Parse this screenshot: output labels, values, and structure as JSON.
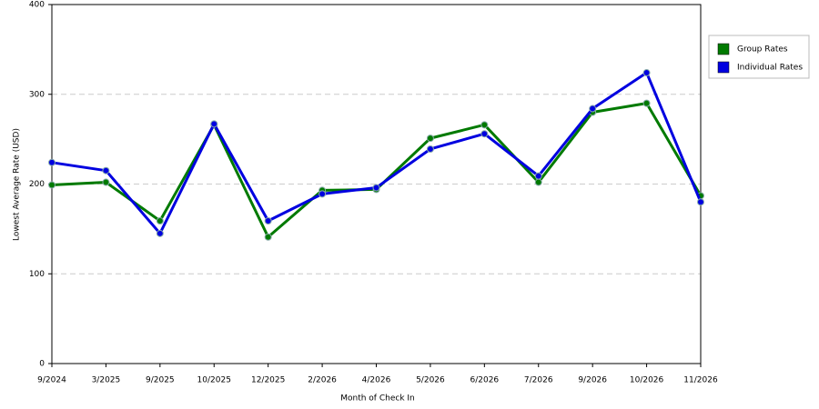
{
  "chart_data": {
    "type": "line",
    "x_label": "Month of Check In",
    "y_label": "Lowest Average Rate (USD)",
    "categories": [
      "9/2024",
      "3/2025",
      "9/2025",
      "10/2025",
      "12/2025",
      "2/2026",
      "4/2026",
      "5/2026",
      "6/2026",
      "7/2026",
      "9/2026",
      "10/2026",
      "11/2026"
    ],
    "series": [
      {
        "name": "Group Rates",
        "color": "#007a00",
        "values": [
          199,
          202,
          159,
          266,
          141,
          193,
          194,
          251,
          266,
          202,
          280,
          290,
          187
        ]
      },
      {
        "name": "Individual Rates",
        "color": "#0000e0",
        "values": [
          224,
          215,
          145,
          267,
          159,
          189,
          196,
          239,
          256,
          209,
          284,
          324,
          180
        ]
      }
    ],
    "ylim": [
      0,
      400
    ],
    "yticks": [
      0,
      100,
      200,
      300,
      400
    ],
    "grid": true,
    "legend": "right"
  }
}
